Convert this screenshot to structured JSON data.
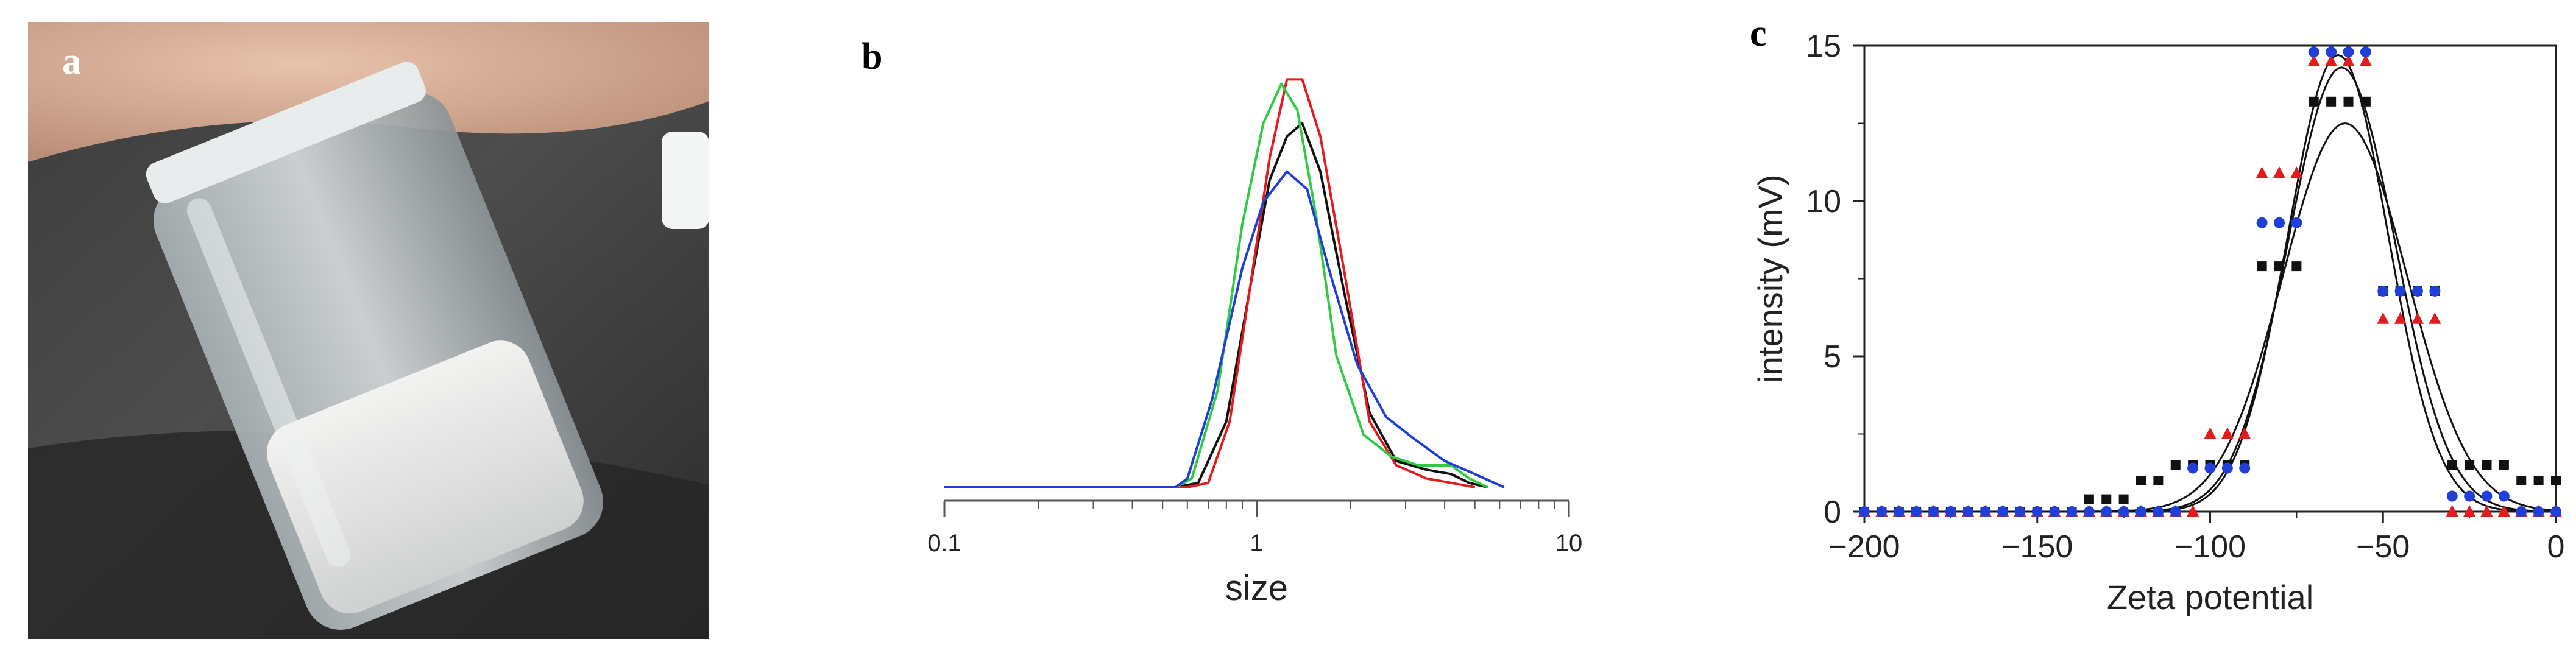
{
  "panels": {
    "a": {
      "letter": "a"
    },
    "b": {
      "letter": "b"
    },
    "c": {
      "letter": "c"
    }
  },
  "colors": {
    "black": "#111111",
    "red": "#e41a1c",
    "green": "#2ecc40",
    "blue": "#1f3fd8",
    "axis": "#555555"
  },
  "chart_data": [
    {
      "panel": "b",
      "type": "line",
      "xscale": "log",
      "xlim": [
        0.1,
        10
      ],
      "xticks": [
        "0.1",
        "1",
        "10"
      ],
      "xtick_values": [
        0.1,
        1,
        10
      ],
      "xlabel": "size",
      "ylabel": "",
      "ylim": [
        0,
        1
      ],
      "series": [
        {
          "color": "#111111",
          "points": [
            [
              0.1,
              0
            ],
            [
              0.55,
              0
            ],
            [
              0.65,
              0.01
            ],
            [
              0.8,
              0.15
            ],
            [
              0.95,
              0.45
            ],
            [
              1.1,
              0.7
            ],
            [
              1.25,
              0.8
            ],
            [
              1.4,
              0.83
            ],
            [
              1.6,
              0.72
            ],
            [
              1.9,
              0.45
            ],
            [
              2.3,
              0.17
            ],
            [
              2.8,
              0.06
            ],
            [
              3.5,
              0.04
            ],
            [
              4.2,
              0.03
            ],
            [
              4.8,
              0.01
            ],
            [
              5.5,
              0
            ]
          ]
        },
        {
          "color": "#e41a1c",
          "points": [
            [
              0.1,
              0
            ],
            [
              0.6,
              0
            ],
            [
              0.7,
              0.01
            ],
            [
              0.82,
              0.15
            ],
            [
              0.95,
              0.45
            ],
            [
              1.1,
              0.75
            ],
            [
              1.25,
              0.93
            ],
            [
              1.4,
              0.93
            ],
            [
              1.6,
              0.8
            ],
            [
              1.9,
              0.5
            ],
            [
              2.3,
              0.15
            ],
            [
              2.8,
              0.05
            ],
            [
              3.5,
              0.02
            ],
            [
              4.2,
              0.01
            ],
            [
              5,
              0
            ]
          ]
        },
        {
          "color": "#2ecc40",
          "points": [
            [
              0.1,
              0
            ],
            [
              0.55,
              0
            ],
            [
              0.62,
              0.02
            ],
            [
              0.75,
              0.22
            ],
            [
              0.9,
              0.6
            ],
            [
              1.05,
              0.83
            ],
            [
              1.2,
              0.92
            ],
            [
              1.35,
              0.86
            ],
            [
              1.55,
              0.62
            ],
            [
              1.8,
              0.3
            ],
            [
              2.2,
              0.12
            ],
            [
              2.7,
              0.07
            ],
            [
              3.3,
              0.05
            ],
            [
              4.2,
              0.05
            ],
            [
              4.8,
              0.02
            ],
            [
              5.5,
              0
            ]
          ]
        },
        {
          "color": "#1f3fd8",
          "points": [
            [
              0.1,
              0
            ],
            [
              0.55,
              0
            ],
            [
              0.6,
              0.02
            ],
            [
              0.72,
              0.2
            ],
            [
              0.9,
              0.5
            ],
            [
              1.05,
              0.65
            ],
            [
              1.25,
              0.72
            ],
            [
              1.45,
              0.68
            ],
            [
              1.7,
              0.5
            ],
            [
              2.1,
              0.28
            ],
            [
              2.6,
              0.16
            ],
            [
              3.2,
              0.11
            ],
            [
              4,
              0.06
            ],
            [
              5,
              0.03
            ],
            [
              6.2,
              0
            ]
          ]
        }
      ]
    },
    {
      "panel": "c",
      "type": "scatter",
      "xlim": [
        -200,
        0
      ],
      "ylim": [
        0,
        15
      ],
      "xticks": [
        "−200",
        "−150",
        "−100",
        "−50",
        "0"
      ],
      "xtick_values": [
        -200,
        -150,
        -100,
        -50,
        0
      ],
      "yticks": [
        "0",
        "5",
        "10",
        "15"
      ],
      "ytick_values": [
        0,
        5,
        10,
        15
      ],
      "xlabel": "Zeta potential",
      "ylabel": "intensity (mV)",
      "series": [
        {
          "color": "#111111",
          "marker": "square",
          "x": [
            -200,
            -195,
            -190,
            -185,
            -180,
            -175,
            -170,
            -165,
            -160,
            -155,
            -150,
            -145,
            -140,
            -135,
            -130,
            -125,
            -120,
            -115,
            -110,
            -105,
            -100,
            -95,
            -90,
            -85,
            -80,
            -75,
            -70,
            -65,
            -60,
            -55,
            -50,
            -45,
            -40,
            -35,
            -30,
            -25,
            -20,
            -15,
            -10,
            -5,
            0
          ],
          "y": [
            0,
            0,
            0,
            0,
            0,
            0,
            0,
            0,
            0,
            0,
            0,
            0,
            0,
            0.4,
            0.4,
            0.4,
            1.0,
            1.0,
            1.5,
            1.5,
            1.5,
            1.5,
            1.5,
            7.9,
            7.9,
            7.9,
            13.2,
            13.2,
            13.2,
            13.2,
            7.1,
            7.1,
            7.1,
            7.1,
            1.5,
            1.5,
            1.5,
            1.5,
            1.0,
            1.0,
            1.0
          ]
        },
        {
          "color": "#e41a1c",
          "marker": "triangle",
          "x": [
            -200,
            -195,
            -190,
            -185,
            -180,
            -175,
            -170,
            -165,
            -160,
            -155,
            -150,
            -145,
            -140,
            -135,
            -130,
            -125,
            -120,
            -115,
            -110,
            -105,
            -100,
            -95,
            -90,
            -85,
            -80,
            -75,
            -70,
            -65,
            -60,
            -55,
            -50,
            -45,
            -40,
            -35,
            -30,
            -25,
            -20,
            -15,
            -10,
            -5,
            0
          ],
          "y": [
            0,
            0,
            0,
            0,
            0,
            0,
            0,
            0,
            0,
            0,
            0,
            0,
            0,
            0,
            0,
            0,
            0,
            0,
            0,
            0,
            2.5,
            2.5,
            2.5,
            10.9,
            10.9,
            10.9,
            14.5,
            14.5,
            14.5,
            14.5,
            6.2,
            6.2,
            6.2,
            6.2,
            0,
            0,
            0,
            0,
            0,
            0,
            0
          ]
        },
        {
          "color": "#1f3fd8",
          "marker": "circle",
          "x": [
            -200,
            -195,
            -190,
            -185,
            -180,
            -175,
            -170,
            -165,
            -160,
            -155,
            -150,
            -145,
            -140,
            -135,
            -130,
            -125,
            -120,
            -115,
            -110,
            -105,
            -100,
            -95,
            -90,
            -85,
            -80,
            -75,
            -70,
            -65,
            -60,
            -55,
            -50,
            -45,
            -40,
            -35,
            -30,
            -25,
            -20,
            -15,
            -10,
            -5,
            0
          ],
          "y": [
            0,
            0,
            0,
            0,
            0,
            0,
            0,
            0,
            0,
            0,
            0,
            0,
            0,
            0,
            0,
            0,
            0,
            0,
            0,
            1.4,
            1.4,
            1.4,
            1.4,
            9.3,
            9.3,
            9.3,
            14.8,
            14.8,
            14.8,
            14.8,
            7.1,
            7.1,
            7.1,
            7.1,
            0.5,
            0.5,
            0.5,
            0.5,
            0,
            0,
            0
          ]
        }
      ],
      "fits": [
        {
          "color": "#111111",
          "center": -61,
          "amplitude": 12.5,
          "sigma": 18
        },
        {
          "color": "#111111",
          "center": -62,
          "amplitude": 14.3,
          "sigma": 15.5
        },
        {
          "color": "#111111",
          "center": -63,
          "amplitude": 14.7,
          "sigma": 14.5
        }
      ]
    }
  ]
}
